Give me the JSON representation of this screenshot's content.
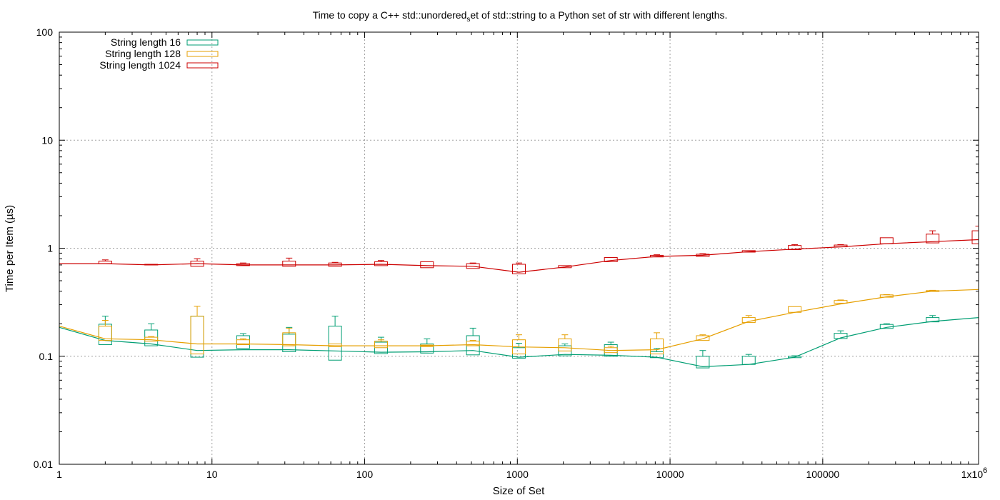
{
  "chart_data": {
    "type": "line",
    "title": "Time to copy a C++ std::unordered_set of std::string to a Python set of str with different lengths.",
    "title_parts": {
      "before": "Time to copy a C++ std::unordered",
      "subscript": "s",
      "after": "et of std::string to a Python set of str with different lengths."
    },
    "xlabel": "Size of Set",
    "ylabel": "Time per Item (µs)",
    "x_scale": "log",
    "y_scale": "log",
    "xlim": [
      1,
      1048576
    ],
    "ylim": [
      0.01,
      100
    ],
    "grid": true,
    "legend_position": "top-left",
    "x_ticks": [
      {
        "value": 1,
        "label": "1"
      },
      {
        "value": 10,
        "label": "10"
      },
      {
        "value": 100,
        "label": "100"
      },
      {
        "value": 1000,
        "label": "1000"
      },
      {
        "value": 10000,
        "label": "10000"
      },
      {
        "value": 100000,
        "label": "100000"
      },
      {
        "value": 1048576,
        "label_base": "1x10",
        "label_exp": "6"
      }
    ],
    "y_ticks": [
      {
        "value": 0.01,
        "label": "0.01"
      },
      {
        "value": 0.1,
        "label": "0.1"
      },
      {
        "value": 1,
        "label": "1"
      },
      {
        "value": 10,
        "label": "10"
      },
      {
        "value": 100,
        "label": "100"
      }
    ],
    "x": [
      1,
      2,
      4,
      8,
      16,
      32,
      64,
      128,
      256,
      512,
      1024,
      2048,
      4096,
      8192,
      16384,
      32768,
      65536,
      131072,
      262144,
      524288,
      1048576
    ],
    "series": [
      {
        "name": "String length 16",
        "color": "#009e73",
        "values": [
          0.185,
          0.14,
          0.13,
          0.113,
          0.115,
          0.115,
          0.112,
          0.109,
          0.11,
          0.113,
          0.098,
          0.104,
          0.102,
          0.098,
          0.08,
          0.084,
          0.098,
          0.148,
          0.185,
          0.21,
          0.228
        ],
        "box": [
          null,
          {
            "q1": 0.128,
            "q3": 0.198,
            "low": 0.128,
            "high": 0.235
          },
          {
            "q1": 0.125,
            "q3": 0.175,
            "low": 0.125,
            "high": 0.2
          },
          {
            "q1": 0.098,
            "q3": 0.235,
            "low": 0.098,
            "high": 0.235
          },
          {
            "q1": 0.118,
            "q3": 0.155,
            "low": 0.118,
            "high": 0.162
          },
          {
            "q1": 0.11,
            "q3": 0.16,
            "low": 0.11,
            "high": 0.185
          },
          {
            "q1": 0.092,
            "q3": 0.19,
            "low": 0.092,
            "high": 0.235
          },
          {
            "q1": 0.106,
            "q3": 0.135,
            "low": 0.106,
            "high": 0.15
          },
          {
            "q1": 0.107,
            "q3": 0.13,
            "low": 0.107,
            "high": 0.145
          },
          {
            "q1": 0.103,
            "q3": 0.155,
            "low": 0.103,
            "high": 0.182
          },
          {
            "q1": 0.096,
            "q3": 0.12,
            "low": 0.096,
            "high": 0.132
          },
          {
            "q1": 0.101,
            "q3": 0.125,
            "low": 0.101,
            "high": 0.13
          },
          {
            "q1": 0.1,
            "q3": 0.128,
            "low": 0.1,
            "high": 0.135
          },
          {
            "q1": 0.097,
            "q3": 0.11,
            "low": 0.097,
            "high": 0.118
          },
          {
            "q1": 0.078,
            "q3": 0.1,
            "low": 0.078,
            "high": 0.113
          },
          {
            "q1": 0.084,
            "q3": 0.1,
            "low": 0.084,
            "high": 0.104
          },
          {
            "q1": 0.097,
            "q3": 0.1,
            "low": 0.097,
            "high": 0.101
          },
          {
            "q1": 0.146,
            "q3": 0.163,
            "low": 0.146,
            "high": 0.172
          },
          {
            "q1": 0.181,
            "q3": 0.197,
            "low": 0.181,
            "high": 0.2
          },
          {
            "q1": 0.208,
            "q3": 0.228,
            "low": 0.208,
            "high": 0.238
          },
          null
        ]
      },
      {
        "name": "String length 128",
        "color": "#e69f00",
        "values": [
          0.19,
          0.145,
          0.142,
          0.13,
          0.13,
          0.128,
          0.125,
          0.125,
          0.125,
          0.128,
          0.122,
          0.12,
          0.113,
          0.115,
          0.145,
          0.21,
          0.255,
          0.305,
          0.355,
          0.4,
          0.415
        ],
        "box": [
          null,
          {
            "q1": 0.14,
            "q3": 0.19,
            "low": 0.14,
            "high": 0.215
          },
          {
            "q1": 0.138,
            "q3": 0.15,
            "low": 0.138,
            "high": 0.152
          },
          {
            "q1": 0.105,
            "q3": 0.235,
            "low": 0.105,
            "high": 0.29
          },
          {
            "q1": 0.128,
            "q3": 0.142,
            "low": 0.128,
            "high": 0.145
          },
          {
            "q1": 0.125,
            "q3": 0.165,
            "low": 0.125,
            "high": 0.182
          },
          {
            "q1": 0.123,
            "q3": 0.13,
            "low": 0.123,
            "high": 0.13
          },
          {
            "q1": 0.12,
            "q3": 0.138,
            "low": 0.12,
            "high": 0.142
          },
          {
            "q1": 0.123,
            "q3": 0.127,
            "low": 0.123,
            "high": 0.127
          },
          {
            "q1": 0.125,
            "q3": 0.138,
            "low": 0.125,
            "high": 0.14
          },
          {
            "q1": 0.105,
            "q3": 0.142,
            "low": 0.105,
            "high": 0.158
          },
          {
            "q1": 0.112,
            "q3": 0.145,
            "low": 0.112,
            "high": 0.158
          },
          {
            "q1": 0.108,
            "q3": 0.12,
            "low": 0.108,
            "high": 0.124
          },
          {
            "q1": 0.105,
            "q3": 0.145,
            "low": 0.105,
            "high": 0.165
          },
          {
            "q1": 0.14,
            "q3": 0.155,
            "low": 0.14,
            "high": 0.158
          },
          {
            "q1": 0.205,
            "q3": 0.228,
            "low": 0.205,
            "high": 0.238
          },
          {
            "q1": 0.255,
            "q3": 0.288,
            "low": 0.255,
            "high": 0.288
          },
          {
            "q1": 0.31,
            "q3": 0.328,
            "low": 0.31,
            "high": 0.332
          },
          {
            "q1": 0.352,
            "q3": 0.37,
            "low": 0.352,
            "high": 0.372
          },
          {
            "q1": 0.398,
            "q3": 0.405,
            "low": 0.398,
            "high": 0.408
          },
          null
        ]
      },
      {
        "name": "String length 1024",
        "color": "#cc0000",
        "values": [
          0.72,
          0.72,
          0.7,
          0.72,
          0.7,
          0.7,
          0.7,
          0.71,
          0.69,
          0.68,
          0.6,
          0.67,
          0.77,
          0.84,
          0.86,
          0.93,
          0.98,
          1.03,
          1.1,
          1.15,
          1.2
        ],
        "box": [
          null,
          {
            "q1": 0.72,
            "q3": 0.76,
            "low": 0.72,
            "high": 0.78
          },
          {
            "q1": 0.7,
            "q3": 0.71,
            "low": 0.7,
            "high": 0.71
          },
          {
            "q1": 0.68,
            "q3": 0.76,
            "low": 0.68,
            "high": 0.8
          },
          {
            "q1": 0.69,
            "q3": 0.72,
            "low": 0.69,
            "high": 0.73
          },
          {
            "q1": 0.68,
            "q3": 0.76,
            "low": 0.68,
            "high": 0.81
          },
          {
            "q1": 0.68,
            "q3": 0.73,
            "low": 0.68,
            "high": 0.74
          },
          {
            "q1": 0.69,
            "q3": 0.75,
            "low": 0.69,
            "high": 0.77
          },
          {
            "q1": 0.66,
            "q3": 0.75,
            "low": 0.66,
            "high": 0.75
          },
          {
            "q1": 0.65,
            "q3": 0.72,
            "low": 0.65,
            "high": 0.73
          },
          {
            "q1": 0.58,
            "q3": 0.71,
            "low": 0.58,
            "high": 0.73
          },
          {
            "q1": 0.66,
            "q3": 0.69,
            "low": 0.66,
            "high": 0.69
          },
          {
            "q1": 0.75,
            "q3": 0.82,
            "low": 0.75,
            "high": 0.82
          },
          {
            "q1": 0.83,
            "q3": 0.86,
            "low": 0.83,
            "high": 0.87
          },
          {
            "q1": 0.84,
            "q3": 0.88,
            "low": 0.84,
            "high": 0.89
          },
          {
            "q1": 0.92,
            "q3": 0.95,
            "low": 0.92,
            "high": 0.95
          },
          {
            "q1": 0.97,
            "q3": 1.06,
            "low": 0.97,
            "high": 1.08
          },
          {
            "q1": 1.03,
            "q3": 1.07,
            "low": 1.03,
            "high": 1.08
          },
          {
            "q1": 1.1,
            "q3": 1.25,
            "low": 1.1,
            "high": 1.25
          },
          {
            "q1": 1.12,
            "q3": 1.35,
            "low": 1.12,
            "high": 1.45
          },
          {
            "q1": 1.1,
            "q3": 1.45,
            "low": 1.1,
            "high": 1.6
          }
        ]
      }
    ]
  }
}
